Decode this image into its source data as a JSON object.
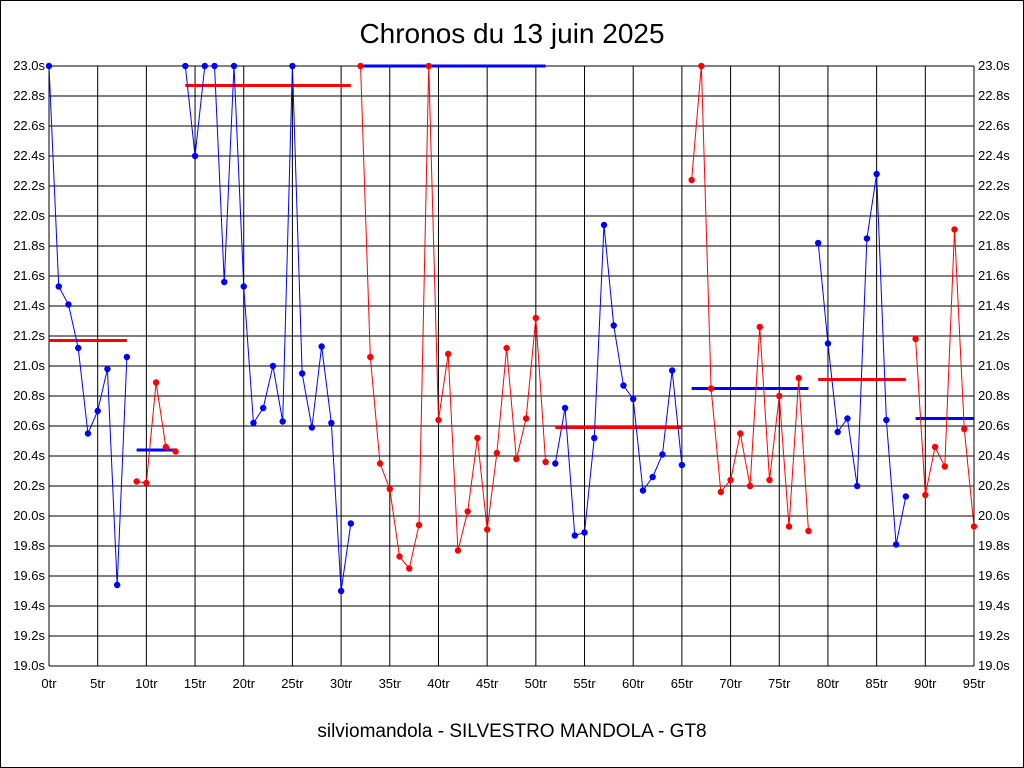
{
  "chart_data": {
    "type": "line",
    "title": "Chronos du 13 juin 2025",
    "caption": "silviomandola - SILVESTRO MANDOLA - GT8",
    "x_ticks": [
      "0tr",
      "5tr",
      "10tr",
      "15tr",
      "20tr",
      "25tr",
      "30tr",
      "35tr",
      "40tr",
      "45tr",
      "50tr",
      "55tr",
      "60tr",
      "65tr",
      "70tr",
      "75tr",
      "80tr",
      "85tr",
      "90tr",
      "95tr"
    ],
    "y_ticks": [
      "23.0s",
      "22.8s",
      "22.6s",
      "22.4s",
      "22.2s",
      "22.0s",
      "21.8s",
      "21.6s",
      "21.4s",
      "21.2s",
      "21.0s",
      "20.8s",
      "20.6s",
      "20.4s",
      "20.2s",
      "20.0s",
      "19.8s",
      "19.6s",
      "19.4s",
      "19.2s",
      "19.0s"
    ],
    "xlim": [
      0,
      95
    ],
    "ylim": [
      19.0,
      23.0
    ],
    "grid": true,
    "colors": {
      "blue": "#0000ff",
      "red": "#ff0000",
      "grid": "#000000"
    },
    "series": [
      {
        "color": "blue",
        "x": [
          0,
          1,
          2,
          3,
          4,
          5,
          6,
          7,
          8
        ],
        "y": [
          23.0,
          21.53,
          21.41,
          21.12,
          20.55,
          20.7,
          20.98,
          19.54,
          21.06
        ]
      },
      {
        "color": "red",
        "x": [
          9,
          10,
          11,
          12,
          13
        ],
        "y": [
          20.23,
          20.22,
          20.89,
          20.46,
          20.43
        ]
      },
      {
        "color": "blue",
        "x": [
          14,
          15,
          16,
          17,
          18,
          19,
          20,
          21,
          22,
          23,
          24,
          25,
          26,
          27,
          28,
          29,
          30,
          31
        ],
        "y": [
          23.0,
          22.4,
          23.0,
          23.0,
          21.56,
          23.0,
          21.53,
          20.62,
          20.72,
          21.0,
          20.63,
          23.0,
          20.95,
          20.59,
          21.13,
          20.62,
          19.5,
          19.95
        ]
      },
      {
        "color": "red",
        "x": [
          32,
          33,
          34,
          35,
          36,
          37,
          38,
          39,
          40,
          41,
          42,
          43,
          44,
          45,
          46,
          47,
          48,
          49,
          50,
          51
        ],
        "y": [
          23.0,
          21.06,
          20.35,
          20.18,
          19.73,
          19.65,
          19.94,
          23.0,
          20.64,
          21.08,
          19.77,
          20.03,
          20.52,
          19.91,
          20.42,
          21.12,
          20.38,
          20.65,
          21.32,
          20.36
        ]
      },
      {
        "color": "blue",
        "x": [
          52,
          53,
          54,
          55,
          56,
          57,
          58,
          59,
          60,
          61,
          62,
          63,
          64,
          65
        ],
        "y": [
          20.35,
          20.72,
          19.87,
          19.89,
          20.52,
          21.94,
          21.27,
          20.87,
          20.78,
          20.17,
          20.26,
          20.41,
          20.97,
          20.34
        ]
      },
      {
        "color": "red",
        "x": [
          66,
          67,
          68,
          69,
          70,
          71,
          72,
          73,
          74,
          75,
          76,
          77,
          78
        ],
        "y": [
          22.24,
          23.0,
          20.85,
          20.16,
          20.24,
          20.55,
          20.2,
          21.26,
          20.24,
          20.8,
          19.93,
          20.92,
          19.9
        ]
      },
      {
        "color": "blue",
        "x": [
          79,
          80,
          81,
          82,
          83,
          84,
          85,
          86,
          87,
          88
        ],
        "y": [
          21.82,
          21.15,
          20.56,
          20.65,
          20.2,
          21.85,
          22.28,
          20.64,
          19.81,
          20.13
        ]
      },
      {
        "color": "red",
        "x": [
          89,
          90,
          91,
          92,
          93,
          94,
          95
        ],
        "y": [
          21.18,
          20.14,
          20.46,
          20.33,
          21.91,
          20.58,
          19.93
        ]
      }
    ],
    "averages": [
      {
        "color": "red",
        "x": [
          0,
          8
        ],
        "y": 21.17
      },
      {
        "color": "blue",
        "x": [
          9,
          13
        ],
        "y": 20.44
      },
      {
        "color": "red",
        "x": [
          14,
          31
        ],
        "y": 22.87
      },
      {
        "color": "blue",
        "x": [
          32,
          51
        ],
        "y": 23.0
      },
      {
        "color": "red",
        "x": [
          52,
          65
        ],
        "y": 20.59
      },
      {
        "color": "blue",
        "x": [
          66,
          78
        ],
        "y": 20.85
      },
      {
        "color": "red",
        "x": [
          79,
          88
        ],
        "y": 20.91
      },
      {
        "color": "blue",
        "x": [
          89,
          95
        ],
        "y": 20.65
      }
    ]
  }
}
